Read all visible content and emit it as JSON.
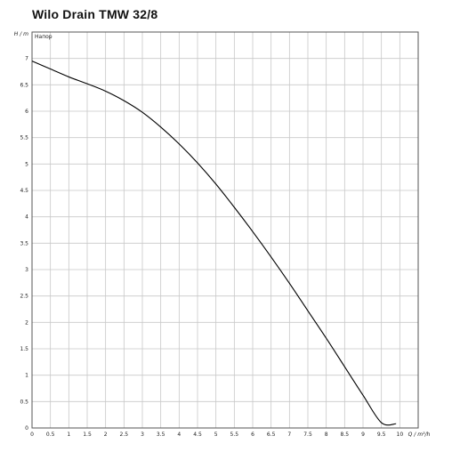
{
  "title": "Wilo Drain TMW 32/8",
  "chart_data": {
    "type": "line",
    "title": "Wilo Drain TMW 32/8",
    "xlabel": "Q / m³/h",
    "ylabel": "H / m",
    "xlim": [
      0,
      10.5
    ],
    "ylim": [
      0,
      7.5
    ],
    "xticks": [
      0,
      0.5,
      1,
      1.5,
      2,
      2.5,
      3,
      3.5,
      4,
      4.5,
      5,
      5.5,
      6,
      6.5,
      7,
      7.5,
      8,
      8.5,
      9,
      9.5,
      10
    ],
    "yticks": [
      0,
      0.5,
      1,
      1.5,
      2,
      2.5,
      3,
      3.5,
      4,
      4.5,
      5,
      5.5,
      6,
      6.5,
      7
    ],
    "grid": true,
    "series": [
      {
        "name": "Напор",
        "color": "#000000",
        "x": [
          0,
          0.5,
          1,
          1.5,
          2,
          2.5,
          3,
          3.5,
          4,
          4.5,
          5,
          5.5,
          6,
          6.5,
          7,
          7.5,
          8,
          8.5,
          9,
          9.5,
          9.9
        ],
        "y": [
          6.95,
          6.8,
          6.65,
          6.52,
          6.38,
          6.2,
          5.98,
          5.7,
          5.38,
          5.02,
          4.62,
          4.18,
          3.72,
          3.24,
          2.74,
          2.22,
          1.7,
          1.16,
          0.62,
          0.1,
          0.08
        ]
      }
    ]
  }
}
